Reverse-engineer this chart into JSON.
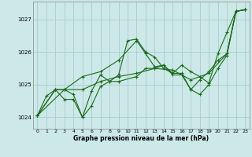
{
  "xlabel": "Graphe pression niveau de la mer (hPa)",
  "background_color": "#cce8e8",
  "grid_color": "#aacccc",
  "line_color": "#1a6b1a",
  "ylim": [
    1023.65,
    1027.55
  ],
  "xlim": [
    -0.5,
    23.5
  ],
  "yticks": [
    1024,
    1025,
    1026,
    1027
  ],
  "xticks": [
    0,
    1,
    2,
    3,
    4,
    5,
    6,
    7,
    8,
    9,
    10,
    11,
    12,
    13,
    14,
    15,
    16,
    17,
    18,
    19,
    20,
    21,
    22,
    23
  ],
  "series": [
    {
      "x": [
        0,
        1,
        2,
        3,
        4,
        5,
        6,
        7,
        8,
        9,
        10,
        11,
        12,
        13,
        14,
        15,
        16,
        17,
        18,
        19,
        20,
        21,
        22,
        23
      ],
      "y": [
        1024.05,
        1024.65,
        1024.85,
        1024.85,
        1024.7,
        1024.0,
        1024.35,
        1024.95,
        1025.1,
        1025.3,
        1026.35,
        1026.4,
        1026.0,
        1025.85,
        1025.5,
        1025.35,
        1025.6,
        1025.4,
        1025.25,
        1025.05,
        1025.95,
        1026.6,
        1027.25,
        1027.3
      ]
    },
    {
      "x": [
        0,
        2,
        3,
        4,
        5,
        6,
        7,
        8,
        9,
        11,
        12,
        13,
        14,
        15,
        16,
        17,
        18,
        19,
        20,
        21,
        22,
        23
      ],
      "y": [
        1024.05,
        1024.85,
        1024.55,
        1024.55,
        1024.0,
        1024.8,
        1025.3,
        1025.1,
        1025.1,
        1025.25,
        1025.5,
        1025.5,
        1025.6,
        1025.3,
        1025.3,
        1024.85,
        1024.7,
        1025.0,
        1025.5,
        1025.9,
        1027.25,
        1027.3
      ]
    },
    {
      "x": [
        0,
        2,
        3,
        5,
        7,
        9,
        11,
        13,
        15,
        17,
        19,
        21,
        22,
        23
      ],
      "y": [
        1024.05,
        1024.85,
        1024.85,
        1024.85,
        1025.1,
        1025.25,
        1025.35,
        1025.5,
        1025.45,
        1025.15,
        1025.35,
        1025.95,
        1027.25,
        1027.3
      ]
    },
    {
      "x": [
        0,
        3,
        5,
        7,
        9,
        11,
        12,
        13,
        14,
        15,
        16,
        17,
        18,
        19,
        20,
        21,
        22,
        23
      ],
      "y": [
        1024.05,
        1024.85,
        1025.25,
        1025.4,
        1025.75,
        1026.35,
        1025.95,
        1025.55,
        1025.6,
        1025.35,
        1025.35,
        1024.85,
        1025.15,
        1025.4,
        1025.75,
        1025.95,
        1027.25,
        1027.3
      ]
    }
  ]
}
